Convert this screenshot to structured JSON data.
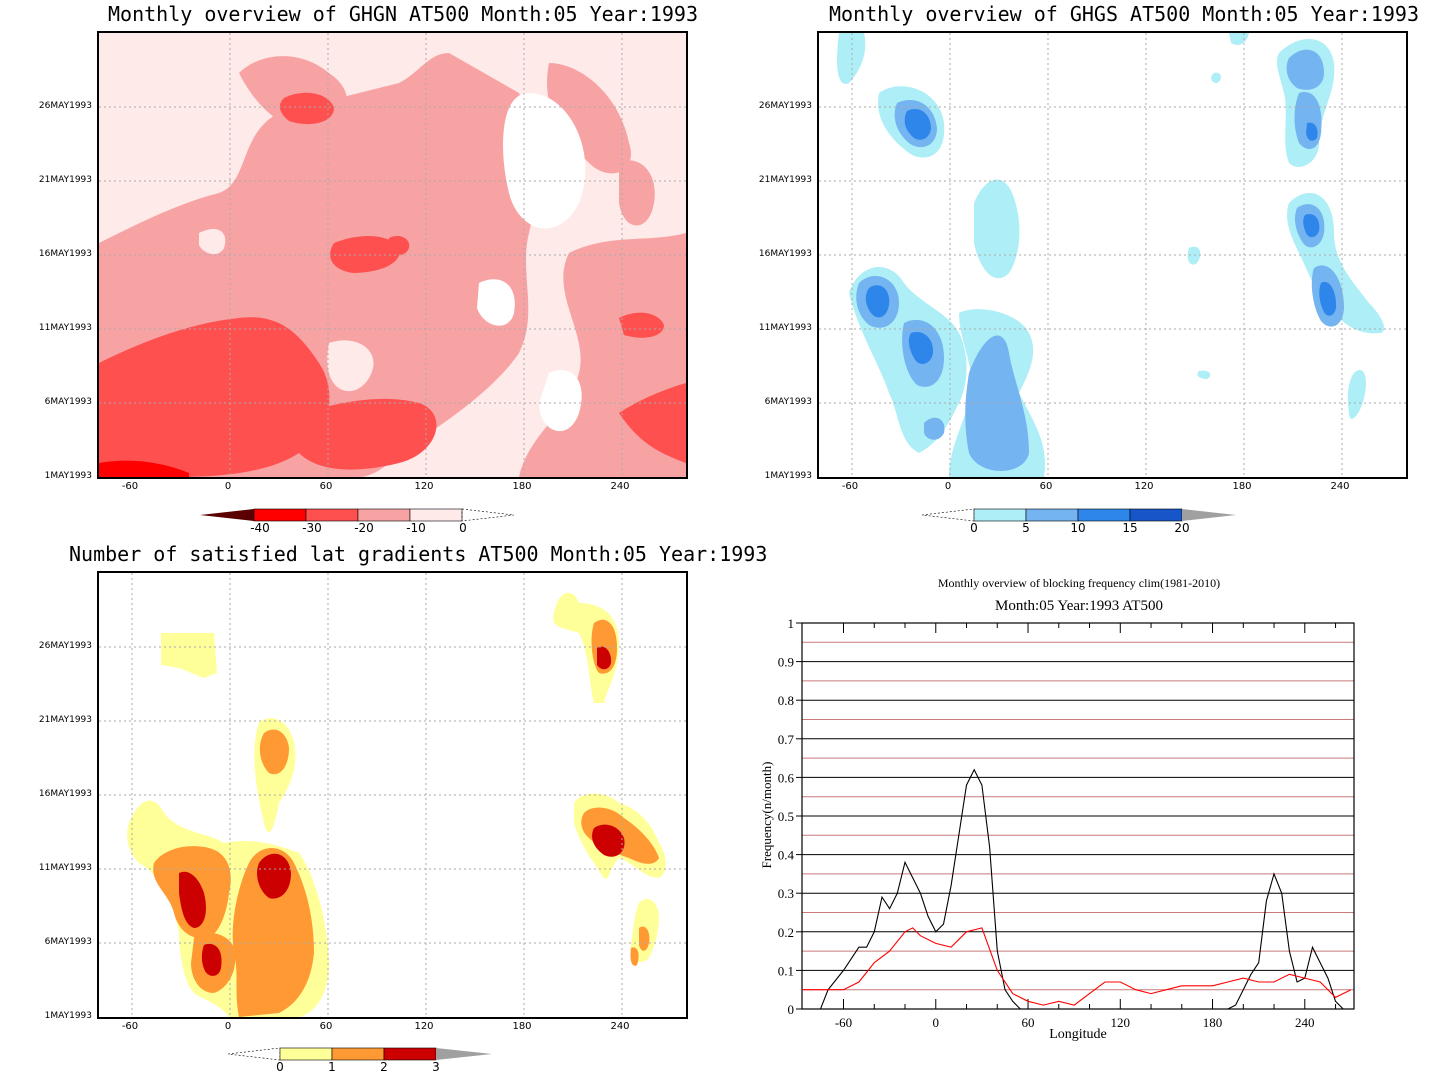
{
  "panels": {
    "ghgn": {
      "title": "Monthly overview of GHGN AT500 Month:05 Year:1993",
      "yticks": [
        "26MAY1993",
        "21MAY1993",
        "16MAY1993",
        "11MAY1993",
        "6MAY1993",
        "1MAY1993"
      ],
      "xticks": [
        "-60",
        "0",
        "60",
        "120",
        "180",
        "240"
      ],
      "colorbar": {
        "labels": [
          "-40",
          "-30",
          "-20",
          "-10",
          "0"
        ],
        "colors": [
          "#5a0000",
          "#ff0000",
          "#ff5050",
          "#f7a3a3",
          "#ffeaea"
        ]
      }
    },
    "ghgs": {
      "title": "Monthly overview of GHGS AT500 Month:05 Year:1993",
      "yticks": [
        "26MAY1993",
        "21MAY1993",
        "16MAY1993",
        "11MAY1993",
        "6MAY1993",
        "1MAY1993"
      ],
      "xticks": [
        "-60",
        "0",
        "60",
        "120",
        "180",
        "240"
      ],
      "colorbar": {
        "labels": [
          "0",
          "5",
          "10",
          "15",
          "20"
        ],
        "colors": [
          "#aeeef7",
          "#74b4f0",
          "#2f86ea",
          "#1656c8",
          "#a0a0a0"
        ]
      }
    },
    "gradients": {
      "title": "Number of satisfied lat gradients AT500 Month:05 Year:1993",
      "yticks": [
        "26MAY1993",
        "21MAY1993",
        "16MAY1993",
        "11MAY1993",
        "6MAY1993",
        "1MAY1993"
      ],
      "xticks": [
        "-60",
        "0",
        "60",
        "120",
        "180",
        "240"
      ],
      "colorbar": {
        "labels": [
          "0",
          "1",
          "2",
          "3"
        ],
        "colors": [
          "#ffff99",
          "#ff9933",
          "#cc0000",
          "#a0a0a0"
        ]
      }
    }
  },
  "chart_data": {
    "type": "line",
    "title": "Monthly overview of blocking frequency clim(1981-2010)",
    "subtitle": "Month:05 Year:1993  AT500",
    "xlabel": "Longitude",
    "ylabel": "Frequency(n/month)",
    "xlim": [
      -87,
      272
    ],
    "ylim": [
      0,
      1
    ],
    "xticks": [
      "-60",
      "0",
      "60",
      "120",
      "180",
      "240"
    ],
    "yticks": [
      "0",
      "0.1",
      "0.2",
      "0.3",
      "0.4",
      "0.5",
      "0.6",
      "0.7",
      "0.8",
      "0.9",
      "1"
    ],
    "series": [
      {
        "color": "#000000",
        "x": [
          -80,
          -75,
          -70,
          -60,
          -50,
          -45,
          -40,
          -35,
          -30,
          -25,
          -20,
          -15,
          -10,
          -5,
          0,
          5,
          10,
          15,
          20,
          25,
          30,
          35,
          40,
          45,
          50,
          55,
          60,
          65,
          190,
          195,
          200,
          205,
          210,
          215,
          220,
          225,
          230,
          235,
          240,
          245,
          250,
          255,
          260,
          265,
          270
        ],
        "y": [
          0,
          0,
          0.05,
          0.1,
          0.16,
          0.16,
          0.2,
          0.29,
          0.26,
          0.3,
          0.38,
          0.34,
          0.3,
          0.24,
          0.2,
          0.22,
          0.32,
          0.45,
          0.58,
          0.62,
          0.58,
          0.42,
          0.15,
          0.05,
          0.02,
          0,
          0,
          0,
          0,
          0.01,
          0.05,
          0.09,
          0.12,
          0.28,
          0.35,
          0.3,
          0.15,
          0.07,
          0.08,
          0.16,
          0.12,
          0.08,
          0.02,
          0,
          0
        ]
      },
      {
        "color": "#ff0000",
        "x": [
          -87,
          -80,
          -70,
          -60,
          -50,
          -40,
          -30,
          -20,
          -15,
          -10,
          0,
          10,
          20,
          30,
          40,
          50,
          60,
          70,
          80,
          90,
          100,
          110,
          120,
          130,
          140,
          150,
          160,
          170,
          180,
          190,
          200,
          210,
          220,
          230,
          240,
          250,
          260,
          270
        ],
        "y": [
          0.05,
          0.05,
          0.05,
          0.05,
          0.07,
          0.12,
          0.15,
          0.2,
          0.21,
          0.19,
          0.17,
          0.16,
          0.2,
          0.21,
          0.1,
          0.04,
          0.02,
          0.01,
          0.02,
          0.01,
          0.04,
          0.07,
          0.07,
          0.05,
          0.04,
          0.05,
          0.06,
          0.06,
          0.06,
          0.07,
          0.08,
          0.07,
          0.07,
          0.09,
          0.08,
          0.07,
          0.03,
          0.05
        ]
      }
    ],
    "hlines": {
      "black": [
        0.1,
        0.2,
        0.3,
        0.4,
        0.5,
        0.6,
        0.7,
        0.8,
        0.9
      ],
      "red": [
        0.05,
        0.15,
        0.25,
        0.35,
        0.45,
        0.55,
        0.65,
        0.75,
        0.85,
        0.95
      ]
    }
  }
}
